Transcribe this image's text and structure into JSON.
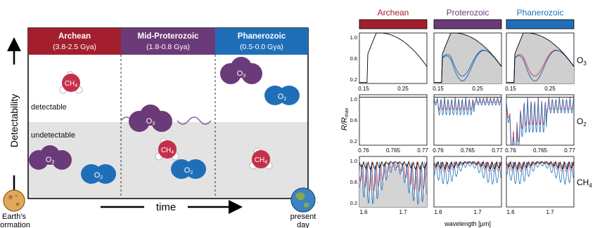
{
  "left": {
    "y_axis_label": "Detectability",
    "x_axis_label": "time",
    "start_label": [
      "Earth's",
      "formation"
    ],
    "end_label": [
      "present",
      "day"
    ],
    "detectable_label": "detectable",
    "undetectable_label": "undetectable",
    "eons": [
      {
        "name": "Archean",
        "range": "(3.8-2.5 Gya)",
        "color": "#a31f2e"
      },
      {
        "name": "Mid-Proterozoic",
        "range": "(1.8-0.8 Gya)",
        "color": "#6b3a78"
      },
      {
        "name": "Phanerozoic",
        "range": "(0.5-0.0 Gya)",
        "color": "#1f6fb8"
      }
    ],
    "molecules": {
      "o3": "O3",
      "o2": "O2",
      "ch4": "CH4"
    },
    "colors": {
      "o3": "#6b3a78",
      "o2": "#1f6fb8",
      "ch4": "#c4304a",
      "undetectable_bg": "#e3e3e3"
    }
  },
  "right": {
    "headers": [
      {
        "name": "Archean",
        "color": "#a31f2e"
      },
      {
        "name": "Proterozoic",
        "color": "#6b3a78"
      },
      {
        "name": "Phanerozoic",
        "color": "#1f6fb8"
      }
    ],
    "y_axis_label": "R/R",
    "y_axis_sub": "max",
    "x_axis_label": "wavelength [µm]",
    "row_labels": [
      "O3",
      "O2",
      "CH4"
    ],
    "rows": [
      {
        "xticks": [
          "0.15",
          "0.25"
        ],
        "yticks": [
          "1.0",
          "0.6",
          "0.2"
        ]
      },
      {
        "xticks": [
          "0.76",
          "0.765",
          "0.77"
        ],
        "yticks": [
          "1.0",
          "0.6",
          "0.2"
        ]
      },
      {
        "xticks": [
          "1.6",
          "1.7"
        ],
        "yticks": [
          "1.0",
          "0.6",
          "0.2"
        ]
      }
    ]
  }
}
